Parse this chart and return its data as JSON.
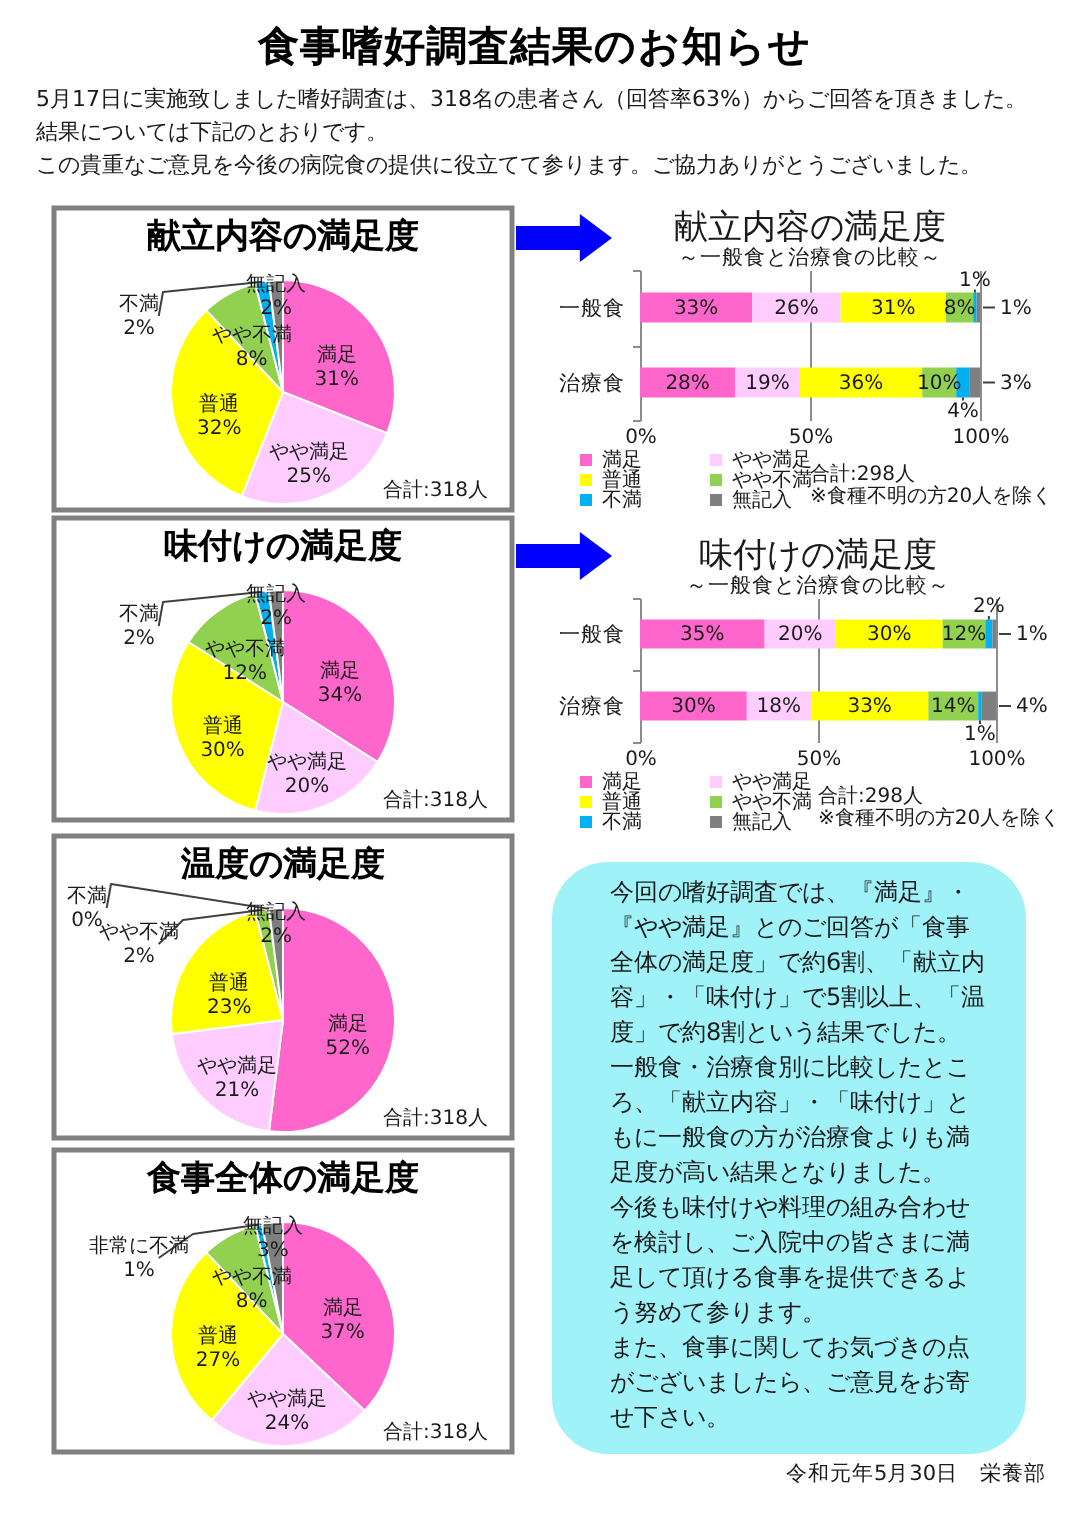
{
  "chart_data": [
    {
      "type": "pie",
      "title": "献立内容の満足度",
      "categories": [
        "満足",
        "やや満足",
        "普通",
        "やや不満",
        "不満",
        "無記入"
      ],
      "values": [
        31,
        25,
        32,
        8,
        2,
        2
      ],
      "value_labels": [
        "31%",
        "25%",
        "32%",
        "8%",
        "2%",
        "2%"
      ],
      "colors": [
        "#ff66cc",
        "#ffccff",
        "#ffff00",
        "#92d050",
        "#00b0f0",
        "#7f7f7f"
      ],
      "annotations": [
        "合計:318人"
      ]
    },
    {
      "type": "bar",
      "orientation": "horizontal",
      "stacked": true,
      "title": "献立内容の満足度",
      "subtitle": "～一般食と治療食の比較～",
      "categories": [
        "一般食",
        "治療食"
      ],
      "series": [
        {
          "name": "満足",
          "color": "#ff66cc",
          "values": [
            33,
            28
          ],
          "value_labels": [
            "33%",
            "28%"
          ]
        },
        {
          "name": "やや満足",
          "color": "#ffccff",
          "values": [
            26,
            19
          ],
          "value_labels": [
            "26%",
            "19%"
          ]
        },
        {
          "name": "普通",
          "color": "#ffff00",
          "values": [
            31,
            36
          ],
          "value_labels": [
            "31%",
            "36%"
          ]
        },
        {
          "name": "やや不満",
          "color": "#92d050",
          "values": [
            8,
            10
          ],
          "value_labels": [
            "8%",
            "10%"
          ]
        },
        {
          "name": "不満",
          "color": "#00b0f0",
          "values": [
            1,
            4
          ],
          "value_labels": [
            "1%",
            "4%"
          ]
        },
        {
          "name": "無記入",
          "color": "#7f7f7f",
          "values": [
            1,
            3
          ],
          "value_labels": [
            "1%",
            "3%"
          ]
        }
      ],
      "xlim": [
        0,
        100
      ],
      "xticks": [
        {
          "value": 0,
          "label": "0%"
        },
        {
          "value": 50,
          "label": "50%"
        },
        {
          "value": 100,
          "label": "100%"
        }
      ],
      "grid": "x",
      "legend": "bottom",
      "annotations": [
        "合計:298人",
        "※食種不明の方20人を除く"
      ]
    },
    {
      "type": "pie",
      "title": "味付けの満足度",
      "categories": [
        "満足",
        "やや満足",
        "普通",
        "やや不満",
        "不満",
        "無記入"
      ],
      "values": [
        34,
        20,
        30,
        12,
        2,
        2
      ],
      "value_labels": [
        "34%",
        "20%",
        "30%",
        "12%",
        "2%",
        "2%"
      ],
      "colors": [
        "#ff66cc",
        "#ffccff",
        "#ffff00",
        "#92d050",
        "#00b0f0",
        "#7f7f7f"
      ],
      "annotations": [
        "合計:318人"
      ]
    },
    {
      "type": "bar",
      "orientation": "horizontal",
      "stacked": true,
      "title": "味付けの満足度",
      "subtitle": "～一般食と治療食の比較～",
      "categories": [
        "一般食",
        "治療食"
      ],
      "series": [
        {
          "name": "満足",
          "color": "#ff66cc",
          "values": [
            35,
            30
          ],
          "value_labels": [
            "35%",
            "30%"
          ]
        },
        {
          "name": "やや満足",
          "color": "#ffccff",
          "values": [
            20,
            18
          ],
          "value_labels": [
            "20%",
            "18%"
          ]
        },
        {
          "name": "普通",
          "color": "#ffff00",
          "values": [
            30,
            33
          ],
          "value_labels": [
            "30%",
            "33%"
          ]
        },
        {
          "name": "やや不満",
          "color": "#92d050",
          "values": [
            12,
            14
          ],
          "value_labels": [
            "12%",
            "14%"
          ]
        },
        {
          "name": "不満",
          "color": "#00b0f0",
          "values": [
            2,
            1
          ],
          "value_labels": [
            "2%",
            "1%"
          ]
        },
        {
          "name": "無記入",
          "color": "#7f7f7f",
          "values": [
            1,
            4
          ],
          "value_labels": [
            "1%",
            "4%"
          ]
        }
      ],
      "xlim": [
        0,
        100
      ],
      "xticks": [
        {
          "value": 0,
          "label": "0%"
        },
        {
          "value": 50,
          "label": "50%"
        },
        {
          "value": 100,
          "label": "100%"
        }
      ],
      "grid": "x",
      "legend": "bottom",
      "annotations": [
        "合計:298人",
        "※食種不明の方20人を除く"
      ]
    },
    {
      "type": "pie",
      "title": "温度の満足度",
      "categories": [
        "満足",
        "やや満足",
        "普通",
        "やや不満",
        "不満",
        "無記入"
      ],
      "values": [
        52,
        21,
        23,
        2,
        0,
        2
      ],
      "value_labels": [
        "52%",
        "21%",
        "23%",
        "2%",
        "0%",
        "2%"
      ],
      "colors": [
        "#ff66cc",
        "#ffccff",
        "#ffff00",
        "#92d050",
        "#00b0f0",
        "#7f7f7f"
      ],
      "annotations": [
        "合計:318人"
      ]
    },
    {
      "type": "pie",
      "title": "食事全体の満足度",
      "categories": [
        "満足",
        "やや満足",
        "普通",
        "やや不満",
        "非常に不満",
        "無記入"
      ],
      "values": [
        37,
        24,
        27,
        8,
        1,
        3
      ],
      "value_labels": [
        "37%",
        "24%",
        "27%",
        "8%",
        "1%",
        "3%"
      ],
      "colors": [
        "#ff66cc",
        "#ffccff",
        "#ffff00",
        "#92d050",
        "#00b0f0",
        "#7f7f7f"
      ],
      "annotations": [
        "合計:318人"
      ]
    },
    {
      "type": "other",
      "title": "食事嗜好調査結果のお知らせ",
      "annotations": [
        "5月17日に実施致しました嗜好調査は、318名の患者さん（回答率63%）からご回答を頂きました。結果については下記のとおりです。",
        "この貴重なご意見を今後の病院食の提供に役立てて参ります。ご協力ありがとうございました。"
      ]
    },
    {
      "type": "other",
      "annotations": [
        "今回の嗜好調査では、『満足』・『やや満足』とのご回答が「食事全体の満足度」で約6割、「献立内容」・「味付け」で5割以上、「温度」で約8割という結果でした。",
        "一般食・治療食別に比較したところ、「献立内容」・「味付け」ともに一般食の方が治療食よりも満足度が高い結果となりました。",
        "今後も味付けや料理の組み合わせを検討し、ご入院中の皆さまに満足して頂ける食事を提供できるよう努めて参ります。",
        "また、食事に関してお気づきの点がございましたら、ご意見をお寄せ下さい。"
      ]
    },
    {
      "type": "other",
      "annotations": [
        "令和元年5月30日　栄養部"
      ]
    }
  ]
}
